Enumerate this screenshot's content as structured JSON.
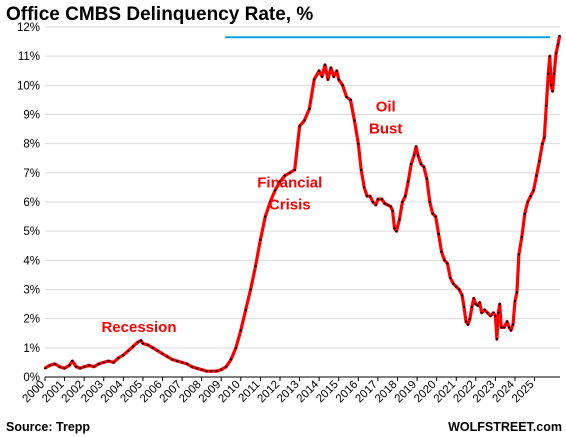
{
  "chart_data": {
    "type": "line",
    "title": "Office CMBS Delinquency Rate, %",
    "source": "Source: Trepp",
    "watermark": "WOLFSTREET.com",
    "ylim": [
      0,
      12
    ],
    "y_ticks": [
      "0%",
      "1%",
      "2%",
      "3%",
      "4%",
      "5%",
      "6%",
      "7%",
      "8%",
      "9%",
      "10%",
      "11%",
      "12%"
    ],
    "x_ticks": [
      "2000",
      "2001",
      "2002",
      "2003",
      "2004",
      "2005",
      "2006",
      "2007",
      "2008",
      "2009",
      "2010",
      "2011",
      "2012",
      "2013",
      "2014",
      "2015",
      "2016",
      "2017",
      "2018",
      "2019",
      "2020",
      "2021",
      "2022",
      "2023",
      "2024",
      "2025"
    ],
    "grid": true,
    "colors": {
      "line": "#ff0000",
      "markers": "#000000",
      "reference_line": "#00a0e0",
      "annotations": "#ff0000"
    },
    "annotations": [
      {
        "text": "Recession",
        "x": 2004.8,
        "y": 1.55
      },
      {
        "text": "Financial",
        "x": 2012.5,
        "y": 6.5
      },
      {
        "text": "Crisis",
        "x": 2012.5,
        "y": 5.75
      },
      {
        "text": "Oil",
        "x": 2017.4,
        "y": 9.1
      },
      {
        "text": "Bust",
        "x": 2017.4,
        "y": 8.35
      }
    ],
    "reference_line": {
      "y": 11.65,
      "x_start": 2009.2,
      "x_end": 2025.8
    },
    "series": [
      {
        "values": [
          [
            2000.0,
            0.3
          ],
          [
            2000.25,
            0.4
          ],
          [
            2000.5,
            0.45
          ],
          [
            2000.75,
            0.35
          ],
          [
            2001.0,
            0.3
          ],
          [
            2001.25,
            0.4
          ],
          [
            2001.4,
            0.55
          ],
          [
            2001.6,
            0.35
          ],
          [
            2001.8,
            0.3
          ],
          [
            2002.0,
            0.35
          ],
          [
            2002.25,
            0.4
          ],
          [
            2002.5,
            0.35
          ],
          [
            2002.75,
            0.45
          ],
          [
            2003.0,
            0.5
          ],
          [
            2003.25,
            0.55
          ],
          [
            2003.5,
            0.5
          ],
          [
            2003.75,
            0.65
          ],
          [
            2004.0,
            0.75
          ],
          [
            2004.25,
            0.9
          ],
          [
            2004.5,
            1.05
          ],
          [
            2004.75,
            1.2
          ],
          [
            2004.9,
            1.25
          ],
          [
            2005.0,
            1.15
          ],
          [
            2005.25,
            1.1
          ],
          [
            2005.5,
            1.0
          ],
          [
            2005.75,
            0.9
          ],
          [
            2006.0,
            0.8
          ],
          [
            2006.25,
            0.7
          ],
          [
            2006.5,
            0.6
          ],
          [
            2006.75,
            0.55
          ],
          [
            2007.0,
            0.5
          ],
          [
            2007.25,
            0.45
          ],
          [
            2007.5,
            0.35
          ],
          [
            2007.75,
            0.3
          ],
          [
            2008.0,
            0.25
          ],
          [
            2008.25,
            0.2
          ],
          [
            2008.5,
            0.2
          ],
          [
            2008.75,
            0.2
          ],
          [
            2009.0,
            0.25
          ],
          [
            2009.25,
            0.35
          ],
          [
            2009.5,
            0.6
          ],
          [
            2009.75,
            1.0
          ],
          [
            2010.0,
            1.6
          ],
          [
            2010.25,
            2.3
          ],
          [
            2010.5,
            3.0
          ],
          [
            2010.75,
            3.8
          ],
          [
            2011.0,
            4.7
          ],
          [
            2011.25,
            5.5
          ],
          [
            2011.5,
            6.0
          ],
          [
            2011.75,
            6.4
          ],
          [
            2012.0,
            6.7
          ],
          [
            2012.25,
            6.9
          ],
          [
            2012.5,
            7.0
          ],
          [
            2012.75,
            7.1
          ],
          [
            2013.0,
            8.6
          ],
          [
            2013.25,
            8.8
          ],
          [
            2013.5,
            9.2
          ],
          [
            2013.75,
            10.2
          ],
          [
            2014.0,
            10.5
          ],
          [
            2014.15,
            10.3
          ],
          [
            2014.3,
            10.7
          ],
          [
            2014.45,
            10.2
          ],
          [
            2014.6,
            10.6
          ],
          [
            2014.75,
            10.3
          ],
          [
            2014.9,
            10.5
          ],
          [
            2015.0,
            10.2
          ],
          [
            2015.2,
            10.0
          ],
          [
            2015.4,
            9.6
          ],
          [
            2015.6,
            9.5
          ],
          [
            2015.8,
            8.8
          ],
          [
            2016.0,
            8.0
          ],
          [
            2016.15,
            7.1
          ],
          [
            2016.3,
            6.5
          ],
          [
            2016.45,
            6.2
          ],
          [
            2016.6,
            6.2
          ],
          [
            2016.75,
            6.0
          ],
          [
            2016.9,
            5.9
          ],
          [
            2017.0,
            6.1
          ],
          [
            2017.2,
            6.1
          ],
          [
            2017.35,
            5.95
          ],
          [
            2017.5,
            5.9
          ],
          [
            2017.65,
            5.85
          ],
          [
            2017.75,
            5.7
          ],
          [
            2017.85,
            5.1
          ],
          [
            2017.95,
            5.0
          ],
          [
            2018.1,
            5.4
          ],
          [
            2018.25,
            6.0
          ],
          [
            2018.4,
            6.2
          ],
          [
            2018.55,
            6.7
          ],
          [
            2018.7,
            7.3
          ],
          [
            2018.85,
            7.6
          ],
          [
            2018.95,
            7.9
          ],
          [
            2019.05,
            7.6
          ],
          [
            2019.2,
            7.3
          ],
          [
            2019.35,
            7.2
          ],
          [
            2019.5,
            6.8
          ],
          [
            2019.65,
            6.0
          ],
          [
            2019.8,
            5.6
          ],
          [
            2019.95,
            5.5
          ],
          [
            2020.1,
            4.9
          ],
          [
            2020.25,
            4.3
          ],
          [
            2020.4,
            4.0
          ],
          [
            2020.55,
            3.9
          ],
          [
            2020.7,
            3.4
          ],
          [
            2020.85,
            3.2
          ],
          [
            2021.0,
            3.1
          ],
          [
            2021.15,
            3.0
          ],
          [
            2021.3,
            2.8
          ],
          [
            2021.4,
            2.4
          ],
          [
            2021.5,
            1.9
          ],
          [
            2021.6,
            1.8
          ],
          [
            2021.7,
            2.0
          ],
          [
            2021.8,
            2.4
          ],
          [
            2021.9,
            2.7
          ],
          [
            2022.0,
            2.5
          ],
          [
            2022.1,
            2.45
          ],
          [
            2022.2,
            2.55
          ],
          [
            2022.3,
            2.2
          ],
          [
            2022.45,
            2.3
          ],
          [
            2022.6,
            2.2
          ],
          [
            2022.75,
            2.1
          ],
          [
            2022.9,
            2.2
          ],
          [
            2023.0,
            2.1
          ],
          [
            2023.08,
            1.3
          ],
          [
            2023.15,
            2.2
          ],
          [
            2023.22,
            2.5
          ],
          [
            2023.3,
            1.7
          ],
          [
            2023.45,
            1.7
          ],
          [
            2023.6,
            1.9
          ],
          [
            2023.7,
            1.7
          ],
          [
            2023.8,
            1.6
          ],
          [
            2023.9,
            1.8
          ],
          [
            2024.0,
            2.6
          ],
          [
            2024.1,
            2.9
          ],
          [
            2024.2,
            4.2
          ],
          [
            2024.35,
            4.8
          ],
          [
            2024.5,
            5.6
          ],
          [
            2024.65,
            6.0
          ],
          [
            2024.8,
            6.2
          ],
          [
            2024.95,
            6.4
          ],
          [
            2025.1,
            6.9
          ],
          [
            2025.25,
            7.4
          ],
          [
            2025.4,
            8.0
          ],
          [
            2025.5,
            8.2
          ],
          [
            2025.6,
            9.3
          ],
          [
            2025.7,
            10.4
          ],
          [
            2025.78,
            11.0
          ],
          [
            2025.85,
            10.0
          ],
          [
            2025.92,
            9.8
          ],
          [
            2026.0,
            10.4
          ],
          [
            2026.1,
            11.1
          ],
          [
            2026.2,
            11.4
          ],
          [
            2026.28,
            11.7
          ]
        ]
      }
    ]
  }
}
